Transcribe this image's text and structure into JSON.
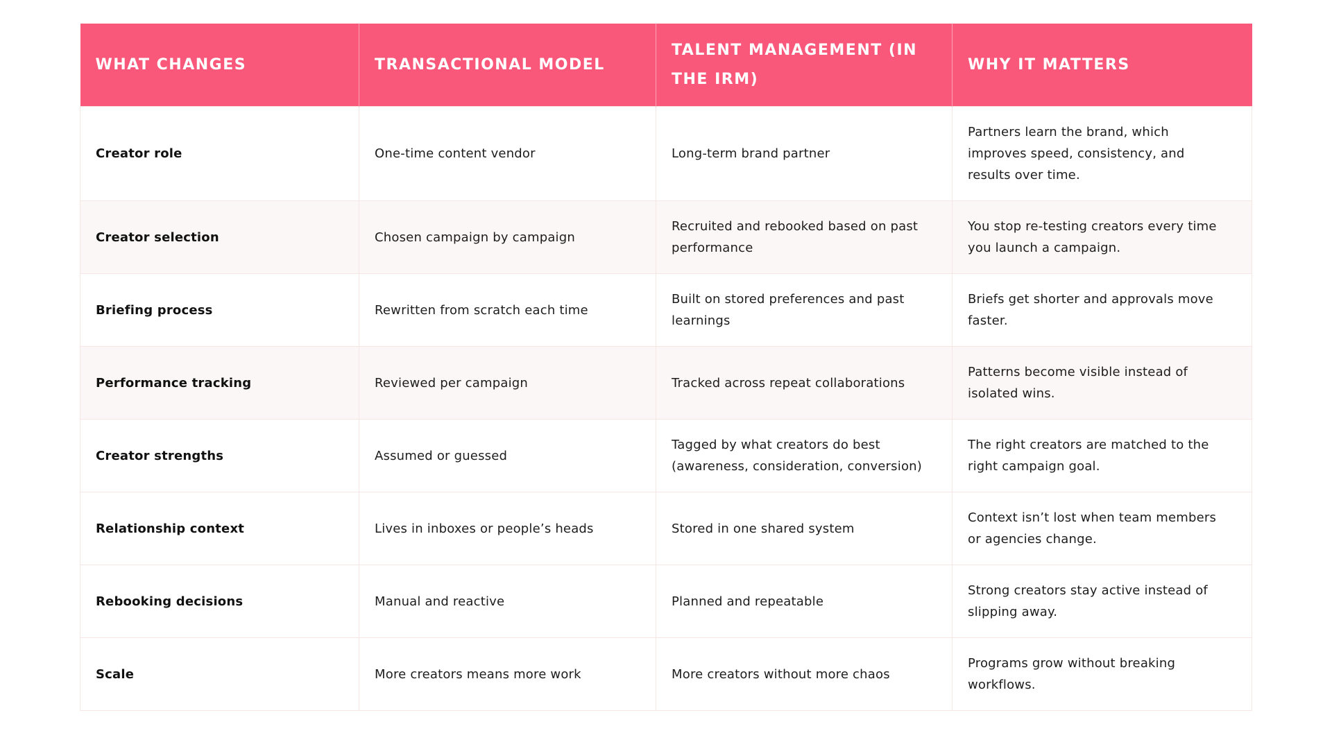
{
  "theme": {
    "header_background": "#F9587B",
    "header_text_color": "#FFFFFF",
    "row_tint": "#FBF7F7",
    "border_color": "#F6E7E5",
    "text_color": "#1D1D1D"
  },
  "table": {
    "columns": [
      {
        "label": "WHAT CHANGES"
      },
      {
        "label": "TRANSACTIONAL MODEL"
      },
      {
        "label": "TALENT MANAGEMENT (IN THE IRM)"
      },
      {
        "label": "WHY IT MATTERS"
      }
    ],
    "rows": [
      {
        "what_changes": "Creator role",
        "transactional_model": "One-time content vendor",
        "talent_management": "Long-term brand partner",
        "why_it_matters": "Partners learn the brand, which improves speed, consistency, and results over time."
      },
      {
        "what_changes": "Creator selection",
        "transactional_model": "Chosen campaign by campaign",
        "talent_management": "Recruited and rebooked based on past performance",
        "why_it_matters": "You stop re-testing creators every time you launch a campaign."
      },
      {
        "what_changes": "Briefing process",
        "transactional_model": "Rewritten from scratch each time",
        "talent_management": "Built on stored preferences and past learnings",
        "why_it_matters": "Briefs get shorter and approvals move faster."
      },
      {
        "what_changes": "Performance tracking",
        "transactional_model": "Reviewed per campaign",
        "talent_management": "Tracked across repeat collaborations",
        "why_it_matters": "Patterns become visible instead of isolated wins."
      },
      {
        "what_changes": "Creator strengths",
        "transactional_model": "Assumed or guessed",
        "talent_management": "Tagged by what creators do best (awareness, consideration, conversion)",
        "why_it_matters": "The right creators are matched to the right campaign goal."
      },
      {
        "what_changes": "Relationship context",
        "transactional_model": "Lives in inboxes or people’s heads",
        "talent_management": "Stored in one shared system",
        "why_it_matters": "Context isn’t lost when team members or agencies change."
      },
      {
        "what_changes": "Rebooking decisions",
        "transactional_model": "Manual and reactive",
        "talent_management": "Planned and repeatable",
        "why_it_matters": "Strong creators stay active instead of slipping away."
      },
      {
        "what_changes": "Scale",
        "transactional_model": "More creators means more work",
        "talent_management": "More creators without more chaos",
        "why_it_matters": "Programs grow without breaking workflows."
      }
    ]
  }
}
